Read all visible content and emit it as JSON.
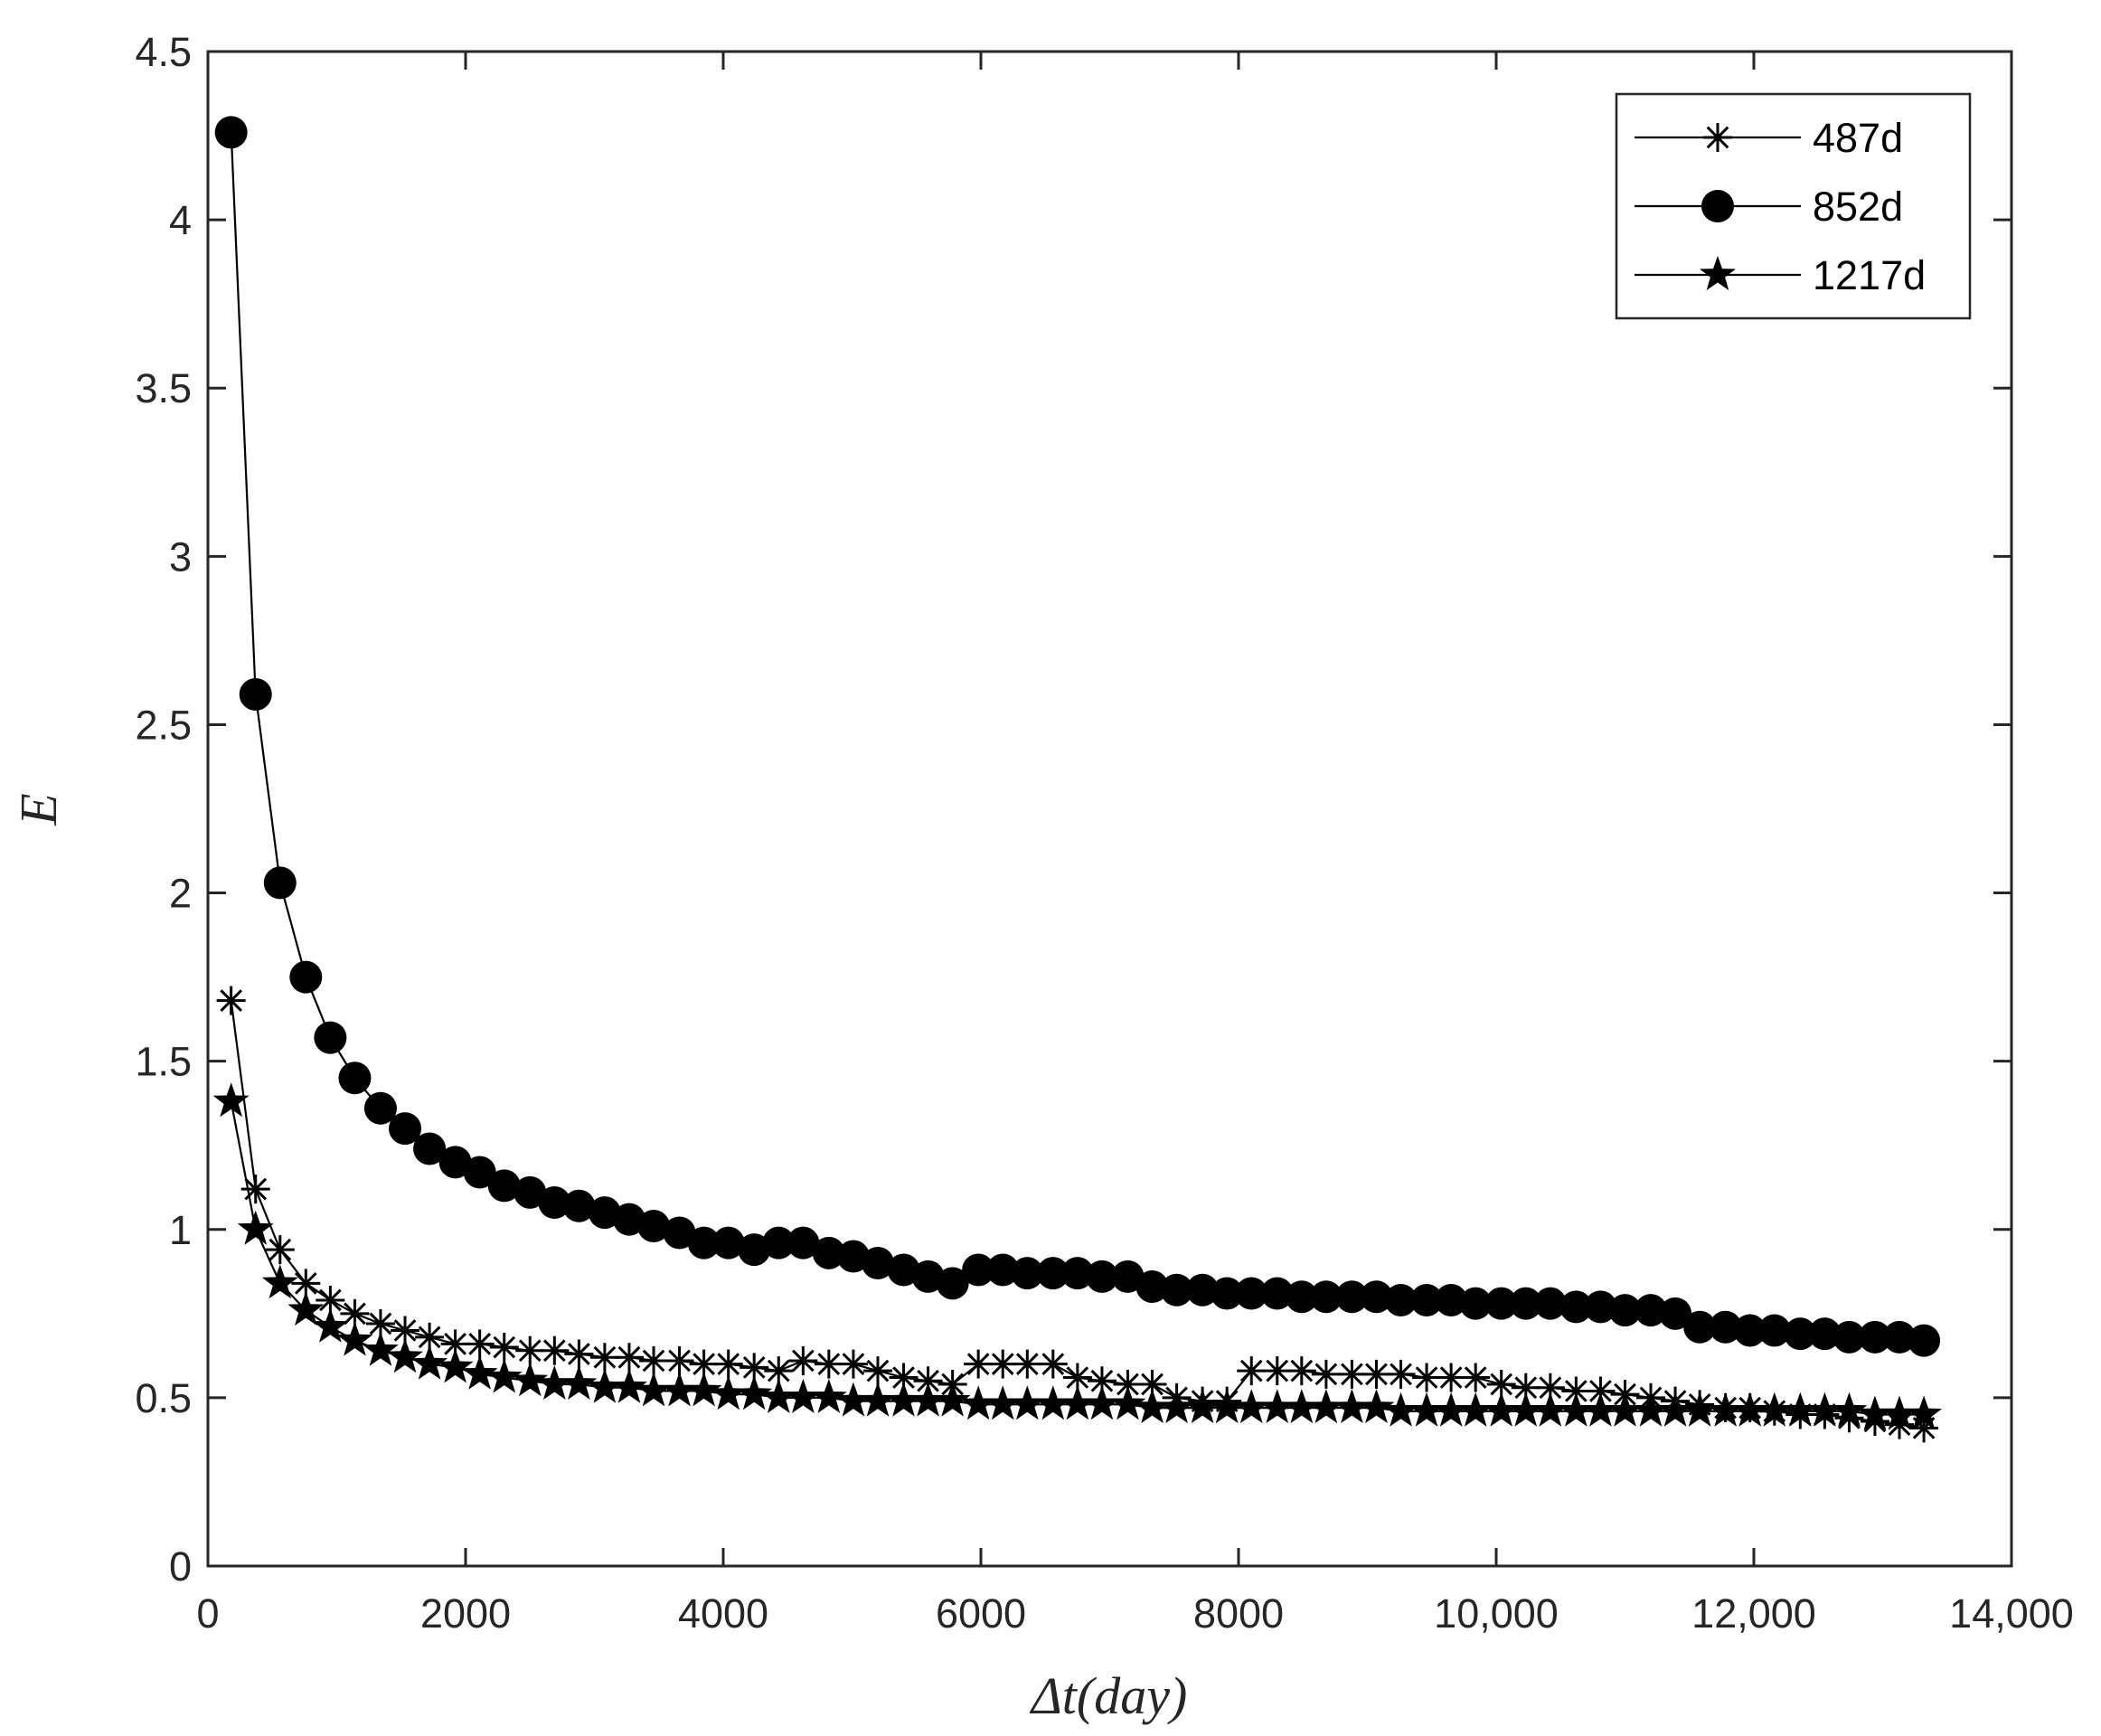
{
  "chart_data": {
    "type": "line",
    "title": "",
    "xlabel": "Δt(day)",
    "ylabel": "E",
    "xlim": [
      0,
      14000
    ],
    "ylim": [
      0,
      4.5
    ],
    "xticks": [
      0,
      2000,
      4000,
      6000,
      8000,
      10000,
      12000,
      14000
    ],
    "xtick_labels": [
      "0",
      "2000",
      "4000",
      "6000",
      "8000",
      "10,000",
      "12,000",
      "14,000"
    ],
    "yticks": [
      0,
      0.5,
      1,
      1.5,
      2,
      2.5,
      3,
      3.5,
      4,
      4.5
    ],
    "ytick_labels": [
      "0",
      "0.5",
      "1",
      "1.5",
      "2",
      "2.5",
      "3",
      "3.5",
      "4",
      "4.5"
    ],
    "grid": false,
    "legend_position": "top-right",
    "colors": {
      "series": "#000000",
      "axis": "#262626",
      "background": "#ffffff"
    },
    "series": [
      {
        "name": "487d",
        "marker": "asterisk",
        "x": [
          180,
          370,
          560,
          760,
          950,
          1140,
          1340,
          1530,
          1720,
          1920,
          2110,
          2300,
          2500,
          2690,
          2880,
          3080,
          3270,
          3460,
          3660,
          3850,
          4040,
          4240,
          4430,
          4620,
          4820,
          5010,
          5200,
          5400,
          5590,
          5780,
          5980,
          6170,
          6360,
          6560,
          6750,
          6940,
          7140,
          7330,
          7520,
          7720,
          7910,
          8100,
          8300,
          8490,
          8680,
          8880,
          9070,
          9260,
          9460,
          9650,
          9840,
          10040,
          10230,
          10420,
          10620,
          10810,
          11000,
          11200,
          11390,
          11580,
          11780,
          11970,
          12160,
          12360,
          12550,
          12740,
          12940,
          13130,
          13320
        ],
        "values": [
          1.68,
          1.12,
          0.94,
          0.84,
          0.79,
          0.75,
          0.72,
          0.7,
          0.68,
          0.66,
          0.66,
          0.65,
          0.64,
          0.64,
          0.63,
          0.62,
          0.62,
          0.61,
          0.61,
          0.6,
          0.6,
          0.59,
          0.58,
          0.61,
          0.6,
          0.6,
          0.58,
          0.56,
          0.55,
          0.54,
          0.6,
          0.6,
          0.6,
          0.6,
          0.56,
          0.55,
          0.54,
          0.54,
          0.5,
          0.49,
          0.49,
          0.58,
          0.58,
          0.58,
          0.57,
          0.57,
          0.57,
          0.57,
          0.56,
          0.56,
          0.56,
          0.54,
          0.53,
          0.53,
          0.52,
          0.52,
          0.51,
          0.5,
          0.49,
          0.48,
          0.47,
          0.47,
          0.46,
          0.45,
          0.45,
          0.44,
          0.43,
          0.42,
          0.41
        ]
      },
      {
        "name": "852d",
        "marker": "circle",
        "x": [
          180,
          370,
          560,
          760,
          950,
          1140,
          1340,
          1530,
          1720,
          1920,
          2110,
          2300,
          2500,
          2690,
          2880,
          3080,
          3270,
          3460,
          3660,
          3850,
          4040,
          4240,
          4430,
          4620,
          4820,
          5010,
          5200,
          5400,
          5590,
          5780,
          5980,
          6170,
          6360,
          6560,
          6750,
          6940,
          7140,
          7330,
          7520,
          7720,
          7910,
          8100,
          8300,
          8490,
          8680,
          8880,
          9070,
          9260,
          9460,
          9650,
          9840,
          10040,
          10230,
          10420,
          10620,
          10810,
          11000,
          11200,
          11390,
          11580,
          11780,
          11970,
          12160,
          12360,
          12550,
          12740,
          12940,
          13130,
          13320
        ],
        "values": [
          4.26,
          2.59,
          2.03,
          1.75,
          1.57,
          1.45,
          1.36,
          1.3,
          1.24,
          1.2,
          1.17,
          1.13,
          1.11,
          1.08,
          1.07,
          1.05,
          1.03,
          1.01,
          0.99,
          0.96,
          0.96,
          0.94,
          0.96,
          0.96,
          0.93,
          0.92,
          0.9,
          0.88,
          0.86,
          0.84,
          0.88,
          0.88,
          0.87,
          0.87,
          0.87,
          0.86,
          0.86,
          0.83,
          0.82,
          0.82,
          0.81,
          0.81,
          0.81,
          0.8,
          0.8,
          0.8,
          0.8,
          0.79,
          0.79,
          0.79,
          0.78,
          0.78,
          0.78,
          0.78,
          0.77,
          0.77,
          0.76,
          0.76,
          0.75,
          0.71,
          0.71,
          0.7,
          0.7,
          0.69,
          0.69,
          0.68,
          0.68,
          0.68,
          0.67
        ]
      },
      {
        "name": "1217d",
        "marker": "star",
        "x": [
          180,
          370,
          560,
          760,
          950,
          1140,
          1340,
          1530,
          1720,
          1920,
          2110,
          2300,
          2500,
          2690,
          2880,
          3080,
          3270,
          3460,
          3660,
          3850,
          4040,
          4240,
          4430,
          4620,
          4820,
          5010,
          5200,
          5400,
          5590,
          5780,
          5980,
          6170,
          6360,
          6560,
          6750,
          6940,
          7140,
          7330,
          7520,
          7720,
          7910,
          8100,
          8300,
          8490,
          8680,
          8880,
          9070,
          9260,
          9460,
          9650,
          9840,
          10040,
          10230,
          10420,
          10620,
          10810,
          11000,
          11200,
          11390,
          11580,
          11780,
          11970,
          12160,
          12360,
          12550,
          12740,
          12940,
          13130,
          13320
        ],
        "values": [
          1.38,
          1.0,
          0.84,
          0.76,
          0.71,
          0.67,
          0.64,
          0.62,
          0.6,
          0.59,
          0.57,
          0.56,
          0.55,
          0.54,
          0.54,
          0.53,
          0.53,
          0.52,
          0.52,
          0.52,
          0.51,
          0.51,
          0.5,
          0.5,
          0.5,
          0.49,
          0.49,
          0.49,
          0.49,
          0.49,
          0.48,
          0.48,
          0.48,
          0.48,
          0.48,
          0.48,
          0.48,
          0.47,
          0.47,
          0.47,
          0.47,
          0.47,
          0.47,
          0.47,
          0.47,
          0.47,
          0.47,
          0.46,
          0.46,
          0.46,
          0.46,
          0.46,
          0.46,
          0.46,
          0.46,
          0.46,
          0.46,
          0.46,
          0.46,
          0.46,
          0.46,
          0.46,
          0.46,
          0.46,
          0.46,
          0.46,
          0.45,
          0.45,
          0.45
        ]
      }
    ]
  }
}
